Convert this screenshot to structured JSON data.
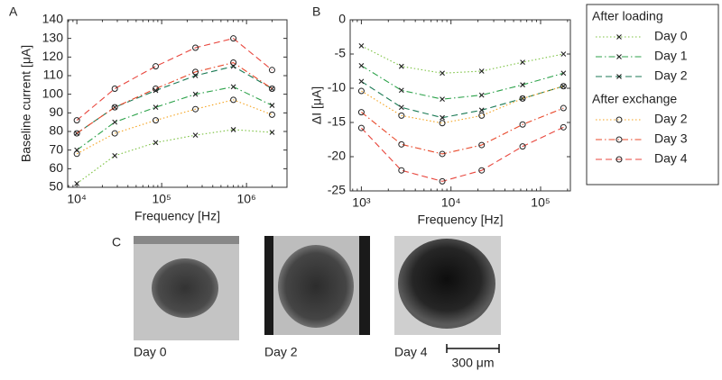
{
  "chart_data": [
    {
      "type": "line",
      "panel_label": "A",
      "x_label": "Frequency [Hz]",
      "y_label": "Baseline current [μA]",
      "x_scale": "log",
      "x": [
        10000,
        28000,
        85000,
        250000,
        700000,
        2000000
      ],
      "xlim": [
        7800,
        3000000
      ],
      "xticks": [
        {
          "value": 10000,
          "label": "10⁴"
        },
        {
          "value": 100000,
          "label": "10⁵"
        },
        {
          "value": 1000000,
          "label": "10⁶"
        }
      ],
      "ylim": [
        50,
        140
      ],
      "yticks": [
        50,
        60,
        70,
        80,
        90,
        100,
        110,
        120,
        130,
        140
      ],
      "series": [
        {
          "name": "Day 0",
          "color": "#7cc242",
          "dash": "dotted",
          "marker": "x",
          "values": [
            52,
            67,
            74,
            78,
            81,
            79.5
          ]
        },
        {
          "name": "Day 1",
          "color": "#2ca24a",
          "dash": "dashdot",
          "marker": "x",
          "values": [
            70,
            85,
            93,
            100,
            104,
            94
          ]
        },
        {
          "name": "Day 2",
          "color": "#1b7a55",
          "dash": "dashed",
          "marker": "x",
          "values": [
            79,
            93,
            102,
            110,
            115,
            103
          ]
        },
        {
          "name": "Day 2",
          "color": "#f4a21d",
          "dash": "dotted",
          "marker": "o",
          "values": [
            68,
            79,
            86,
            92,
            97,
            89
          ]
        },
        {
          "name": "Day 3",
          "color": "#e8482a",
          "dash": "dashdot",
          "marker": "o",
          "values": [
            79,
            93,
            103,
            112,
            117,
            103
          ]
        },
        {
          "name": "Day 4",
          "color": "#e8453c",
          "dash": "dashed",
          "marker": "o",
          "values": [
            86,
            103,
            115,
            125,
            130,
            113
          ]
        }
      ]
    },
    {
      "type": "line",
      "panel_label": "B",
      "x_label": "Frequency [Hz]",
      "y_label": "ΔI [μA]",
      "x_scale": "log",
      "x": [
        1000,
        2800,
        8000,
        22000,
        63000,
        180000
      ],
      "xlim": [
        750,
        215000
      ],
      "xticks": [
        {
          "value": 1000,
          "label": "10³"
        },
        {
          "value": 10000,
          "label": "10⁴"
        },
        {
          "value": 100000,
          "label": "10⁵"
        }
      ],
      "ylim": [
        -25,
        0
      ],
      "yticks": [
        -25,
        -20,
        -15,
        -10,
        -5,
        0
      ],
      "legend_groups": [
        "After loading",
        "After exchange"
      ],
      "series": [
        {
          "name": "Day 0",
          "color": "#7cc242",
          "dash": "dotted",
          "marker": "x",
          "values": [
            -3.8,
            -6.8,
            -7.8,
            -7.5,
            -6.2,
            -5
          ]
        },
        {
          "name": "Day 1",
          "color": "#2ca24a",
          "dash": "dashdot",
          "marker": "x",
          "values": [
            -6.7,
            -10.3,
            -11.6,
            -11,
            -9.5,
            -7.8
          ]
        },
        {
          "name": "Day 2",
          "color": "#1b7a55",
          "dash": "dashed",
          "marker": "x",
          "values": [
            -9,
            -12.8,
            -14.3,
            -13.2,
            -11.5,
            -9.7
          ]
        },
        {
          "name": "Day 2",
          "color": "#f4a21d",
          "dash": "dotted",
          "marker": "o",
          "values": [
            -10.4,
            -14,
            -15.1,
            -14,
            -11.5,
            -9.7
          ]
        },
        {
          "name": "Day 3",
          "color": "#e8482a",
          "dash": "dashdot",
          "marker": "o",
          "values": [
            -13.5,
            -18.2,
            -19.6,
            -18.3,
            -15.3,
            -12.9
          ]
        },
        {
          "name": "Day 4",
          "color": "#e8453c",
          "dash": "dashed",
          "marker": "o",
          "values": [
            -15.8,
            -22,
            -23.6,
            -22,
            -18.5,
            -15.7
          ]
        }
      ]
    }
  ],
  "panel_c": {
    "panel_label": "C",
    "images": [
      {
        "label": "Day 0"
      },
      {
        "label": "Day 2"
      },
      {
        "label": "Day 4"
      }
    ],
    "scale_bar": "300 μm"
  }
}
